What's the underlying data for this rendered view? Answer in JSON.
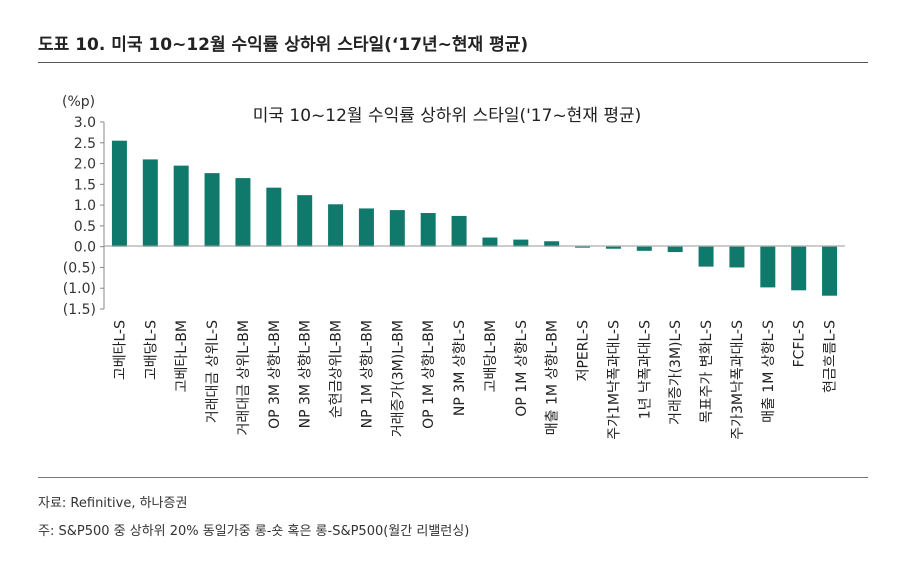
{
  "figure": {
    "title": "도표 10. 미국 10~12월 수익률 상하위 스타일(‘17년~현재 평균)",
    "source": "자료: Refinitive, 하나증권",
    "footnote": "주: S&P500 중 상하위 20% 동일가중 롱-숏 혹은 롱-S&P500(월간 리밸런싱)"
  },
  "chart_data": {
    "type": "bar",
    "title": "미국 10~12월 수익률 상하위 스타일('17~현재 평균)",
    "ylabel": "(%p)",
    "xlabel": "",
    "ylim": [
      -1.5,
      3.0
    ],
    "yticks": [
      3.0,
      2.5,
      2.0,
      1.5,
      1.0,
      0.5,
      0.0,
      -0.5,
      -1.0,
      -1.5
    ],
    "ytick_labels": [
      "3.0",
      "2.5",
      "2.0",
      "1.5",
      "1.0",
      "0.5",
      "0.0",
      "(0.5)",
      "(1.0)",
      "(1.5)"
    ],
    "bar_color": "#0f7a6b",
    "categories": [
      "고베타L-S",
      "고배당L-S",
      "고베타L-BM",
      "거래대금 상위L-S",
      "거래대금 상위L-BM",
      "OP 3M 상향L-BM",
      "NP 3M 상향L-BM",
      "순현금상위L-BM",
      "NP 1M 상향L-BM",
      "거래증가(3M)L-BM",
      "OP 1M 상향L-BM",
      "NP 3M 상향L-S",
      "고배당L-BM",
      "OP 1M 상향L-S",
      "매출 1M 상향L-BM",
      "저PERL-S",
      "주가1M낙폭과대L-S",
      "1년 낙폭과대L-S",
      "거래증가(3M)L-S",
      "목표주가 변화L-S",
      "주가3M낙폭과대L-S",
      "매출 1M 상향L-S",
      "FCFL-S",
      "현금흐름L-S"
    ],
    "values": [
      2.55,
      2.1,
      1.95,
      1.77,
      1.65,
      1.42,
      1.24,
      1.02,
      0.92,
      0.88,
      0.81,
      0.74,
      0.22,
      0.17,
      0.13,
      -0.02,
      -0.05,
      -0.1,
      -0.13,
      -0.48,
      -0.5,
      -0.98,
      -1.05,
      -1.18
    ]
  }
}
